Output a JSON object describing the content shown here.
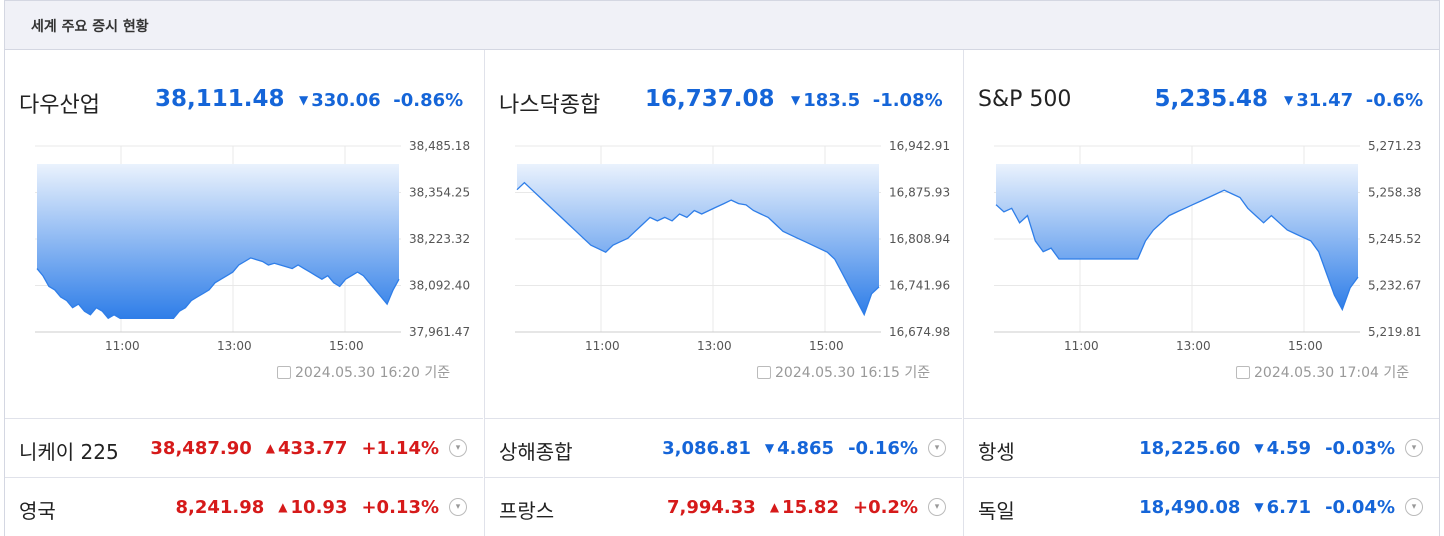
{
  "title": "세계 주요 증시 현황",
  "panels": [
    {
      "name": "다우산업",
      "value": "38,111.48",
      "change": "330.06",
      "pct": "-0.86%",
      "dir": "down",
      "yticks": [
        "38,485.18",
        "38,354.25",
        "38,223.32",
        "38,092.40",
        "37,961.47"
      ],
      "xticks": [
        "11:00",
        "13:00",
        "15:00"
      ],
      "stamp": "2024.05.30 16:20 기준",
      "series": [
        38140,
        38120,
        38090,
        38080,
        38060,
        38050,
        38030,
        38040,
        38020,
        38010,
        38030,
        38020,
        38000,
        38010,
        38000,
        38000,
        38000,
        38000,
        38000,
        38000,
        38000,
        38000,
        38000,
        38000,
        38020,
        38030,
        38050,
        38060,
        38070,
        38080,
        38100,
        38110,
        38120,
        38130,
        38150,
        38160,
        38170,
        38165,
        38160,
        38150,
        38155,
        38150,
        38145,
        38140,
        38150,
        38140,
        38130,
        38120,
        38110,
        38120,
        38100,
        38090,
        38110,
        38120,
        38130,
        38120,
        38100,
        38080,
        38060,
        38040,
        38080,
        38110
      ]
    },
    {
      "name": "나스닥종합",
      "value": "16,737.08",
      "change": "183.5",
      "pct": "-1.08%",
      "dir": "down",
      "yticks": [
        "16,942.91",
        "16,875.93",
        "16,808.94",
        "16,741.96",
        "16,674.98"
      ],
      "xticks": [
        "11:00",
        "13:00",
        "15:00"
      ],
      "stamp": "2024.05.30 16:15 기준",
      "series": [
        16880,
        16890,
        16880,
        16870,
        16860,
        16850,
        16840,
        16830,
        16820,
        16810,
        16800,
        16795,
        16790,
        16800,
        16805,
        16810,
        16820,
        16830,
        16840,
        16835,
        16840,
        16835,
        16845,
        16840,
        16850,
        16845,
        16850,
        16855,
        16860,
        16865,
        16860,
        16858,
        16850,
        16845,
        16840,
        16830,
        16820,
        16815,
        16810,
        16805,
        16800,
        16795,
        16790,
        16780,
        16760,
        16740,
        16720,
        16700,
        16730,
        16740
      ]
    },
    {
      "name": "S&P 500",
      "value": "5,235.48",
      "change": "31.47",
      "pct": "-0.6%",
      "dir": "down",
      "yticks": [
        "5,271.23",
        "5,258.38",
        "5,245.52",
        "5,232.67",
        "5,219.81"
      ],
      "xticks": [
        "11:00",
        "13:00",
        "15:00"
      ],
      "stamp": "2024.05.30 17:04 기준",
      "series": [
        5255,
        5253,
        5254,
        5250,
        5252,
        5245,
        5242,
        5243,
        5240,
        5240,
        5240,
        5240,
        5240,
        5240,
        5240,
        5240,
        5240,
        5240,
        5240,
        5245,
        5248,
        5250,
        5252,
        5253,
        5254,
        5255,
        5256,
        5257,
        5258,
        5259,
        5258,
        5257,
        5254,
        5252,
        5250,
        5252,
        5250,
        5248,
        5247,
        5246,
        5245,
        5242,
        5236,
        5230,
        5226,
        5232,
        5235
      ]
    }
  ],
  "rows": [
    {
      "name": "니케이 225",
      "value": "38,487.90",
      "change": "433.77",
      "pct": "+1.14%",
      "dir": "up"
    },
    {
      "name": "상해종합",
      "value": "3,086.81",
      "change": "4.865",
      "pct": "-0.16%",
      "dir": "down"
    },
    {
      "name": "항셍",
      "value": "18,225.60",
      "change": "4.59",
      "pct": "-0.03%",
      "dir": "down"
    },
    {
      "name": "영국",
      "value": "8,241.98",
      "change": "10.93",
      "pct": "+0.13%",
      "dir": "up"
    },
    {
      "name": "프랑스",
      "value": "7,994.33",
      "change": "15.82",
      "pct": "+0.2%",
      "dir": "up"
    },
    {
      "name": "독일",
      "value": "18,490.08",
      "change": "6.71",
      "pct": "-0.04%",
      "dir": "down"
    }
  ],
  "icons": {
    "expand": "chevron-down-icon",
    "stamp": "calendar-icon",
    "down": "triangle-down-icon",
    "up": "triangle-up-icon"
  },
  "colors": {
    "up": "#d61a1a",
    "down": "#1565d8",
    "area_top": "#2f7ee8",
    "area_bottom": "#eaf2fd"
  }
}
